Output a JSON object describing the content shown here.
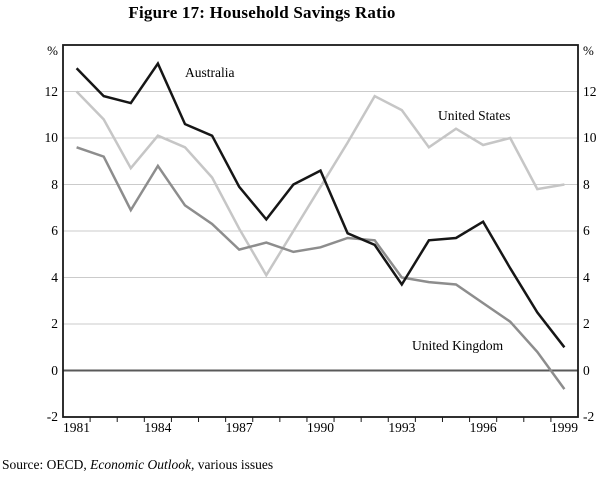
{
  "figure": {
    "title": "Figure 17: Household Savings Ratio",
    "source_prefix": "Source: OECD, ",
    "source_italic": "Economic Outlook,",
    "source_suffix": " various issues"
  },
  "chart_data": {
    "type": "line",
    "title": "Figure 17: Household Savings Ratio",
    "ylabel_unit": "%",
    "ylim": [
      -2,
      14
    ],
    "grid": "horizontal gridlines every 2 units, darker line at 0",
    "legend_position": "inline labels next to lines",
    "x": [
      1981,
      1982,
      1983,
      1984,
      1985,
      1986,
      1987,
      1988,
      1989,
      1990,
      1991,
      1992,
      1993,
      1994,
      1995,
      1996,
      1997,
      1998,
      1999
    ],
    "x_tick_labels": [
      "1981",
      "1984",
      "1987",
      "1990",
      "1993",
      "1996",
      "1999"
    ],
    "x_tick_label_years": [
      1981,
      1984,
      1987,
      1990,
      1993,
      1996,
      1999
    ],
    "y_tick_labels": [
      "12",
      "10",
      "8",
      "6",
      "4",
      "2",
      "0",
      "-2"
    ],
    "y_tick_values": [
      12,
      10,
      8,
      6,
      4,
      2,
      0,
      -2
    ],
    "series": [
      {
        "name": "Australia",
        "color": "#161616",
        "values": [
          13.0,
          11.8,
          11.5,
          13.2,
          10.6,
          10.1,
          7.9,
          6.5,
          8.0,
          8.6,
          5.9,
          5.4,
          3.7,
          5.6,
          5.7,
          6.4,
          4.4,
          2.5,
          1.0
        ]
      },
      {
        "name": "United States",
        "color": "#c6c6c6",
        "values": [
          12.0,
          10.8,
          8.7,
          10.1,
          9.6,
          8.3,
          6.1,
          4.1,
          6.0,
          7.9,
          9.8,
          11.8,
          11.2,
          9.6,
          10.4,
          9.7,
          10.0,
          7.8,
          8.0
        ]
      },
      {
        "name": "United Kingdom",
        "color": "#8d8d8d",
        "values": [
          9.6,
          9.2,
          6.9,
          8.8,
          7.1,
          6.3,
          5.2,
          5.5,
          5.1,
          5.3,
          5.7,
          5.6,
          4.0,
          3.8,
          3.7,
          2.9,
          2.1,
          0.8,
          -0.8
        ]
      }
    ],
    "frame_color": "#1a1a1a",
    "gridline_color": "#cbcbcb",
    "zero_line_color": "#595959"
  }
}
